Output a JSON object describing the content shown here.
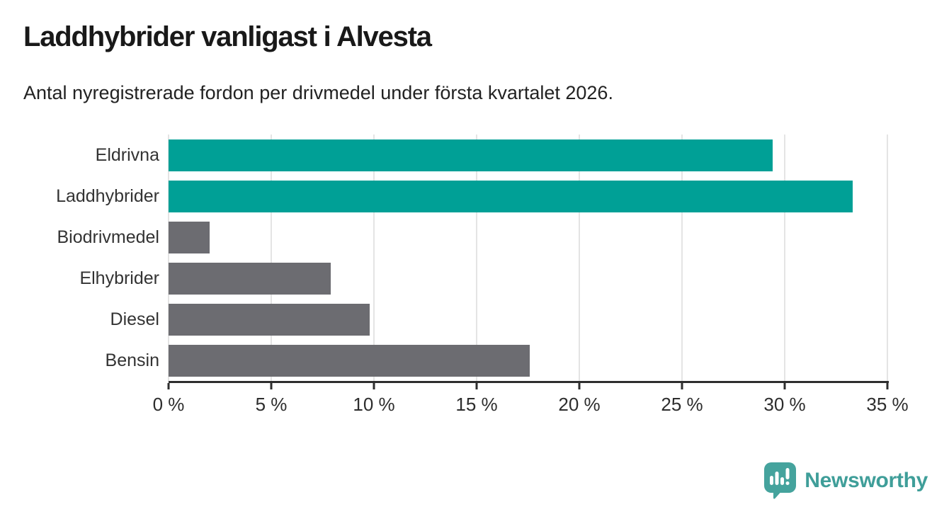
{
  "chart_data": {
    "type": "bar",
    "orientation": "horizontal",
    "title": "Laddhybrider vanligast i Alvesta",
    "subtitle": "Antal nyregistrerade fordon per drivmedel under första kvartalet 2026.",
    "categories": [
      "Eldrivna",
      "Laddhybrider",
      "Biodrivmedel",
      "Elhybrider",
      "Diesel",
      "Bensin"
    ],
    "values": [
      29.4,
      33.3,
      2.0,
      7.9,
      9.8,
      17.6
    ],
    "unit": "%",
    "bar_colors": [
      "#00a096",
      "#00a096",
      "#6c6c71",
      "#6c6c71",
      "#6c6c71",
      "#6c6c71"
    ],
    "highlight_color": "#00a096",
    "default_color": "#6c6c71",
    "xlim": [
      0,
      35
    ],
    "x_ticks": [
      {
        "value": 0,
        "label": "0 %"
      },
      {
        "value": 5,
        "label": "5 %"
      },
      {
        "value": 10,
        "label": "10 %"
      },
      {
        "value": 15,
        "label": "15 %"
      },
      {
        "value": 20,
        "label": "20 %"
      },
      {
        "value": 25,
        "label": "25 %"
      },
      {
        "value": 30,
        "label": "30 %"
      },
      {
        "value": 35,
        "label": "35 %"
      }
    ],
    "grid": true,
    "gridline_color": "#e4e4e4",
    "axis_color": "#2e2e2e",
    "legend": "none"
  },
  "branding": {
    "logo_text": "Newsworthy",
    "logo_color": "#3f9e99",
    "logo_badge_color": "#45a39d",
    "logo_icon": "newsworthy-badge-icon"
  }
}
